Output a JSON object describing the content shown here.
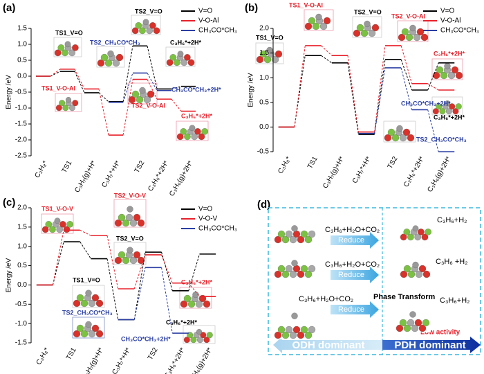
{
  "chart_data": [
    {
      "type": "energy-profile",
      "title": "(a)",
      "y_label": "Energy /eV",
      "categories": [
        "C₃H₈*",
        "TS1",
        "C₃H₇(g)+H*",
        "C₃H₇*+H*",
        "TS2",
        "C₃H₆*+2H*",
        "C₃H₆(g)+2H*"
      ],
      "series": [
        {
          "name": "V=O",
          "color": "#000000",
          "values": [
            0,
            0.15,
            -0.52,
            -0.8,
            0.95,
            -0.4,
            -0.32
          ]
        },
        {
          "name": "V-O-Al",
          "color": "#e8202a",
          "values": [
            0,
            0.22,
            -0.4,
            -1.85,
            -0.1,
            -0.72,
            -1.1
          ]
        },
        {
          "name": "CH₃CO*CH₃",
          "color": "#2b3fa3",
          "values": [
            null,
            null,
            null,
            -0.82,
            0.1,
            -0.45,
            null
          ]
        }
      ],
      "ylim": [
        -2.5,
        1.5
      ],
      "yticks": [
        -2.5,
        {
          "value": -2,
          "label": "-2.0"
        },
        -1.5,
        {
          "value": -1,
          "label": "-1.0"
        },
        -0.5,
        {
          "value": 0,
          "label": "0.0"
        },
        0.5,
        {
          "value": 1,
          "label": "1.0"
        },
        1.5
      ],
      "annotations": [
        {
          "text": "TS1_V=O",
          "color": "#000000"
        },
        {
          "text": "TS2_V=O",
          "color": "#000000"
        },
        {
          "text": "TS2_CH₃CO*CH₃",
          "color": "#2b3fa3"
        },
        {
          "text": "TS1_V-O-Al",
          "color": "#e8202a"
        },
        {
          "text": "TS2_V-O-Al",
          "color": "#e8202a"
        },
        {
          "text": "C₃H₆*+2H*",
          "color": "#000000"
        },
        {
          "text": "C₃H₆*+2H*",
          "color": "#e8202a"
        },
        {
          "text": "CH₃CO*CH₃+2H*",
          "color": "#2b3fa3"
        }
      ]
    },
    {
      "type": "energy-profile",
      "title": "(b)",
      "y_label": "Energy /eV",
      "categories": [
        "C₃H₈*",
        "TS1",
        "C₃H₇(g)+H*",
        "C₃H₇*+H*",
        "TS2",
        "C₃H₆*+2H*",
        "C₃H₆(g)+2H*"
      ],
      "series": [
        {
          "name": "V=O",
          "color": "#000000",
          "values": [
            0,
            1.45,
            1.3,
            -0.15,
            1.37,
            0.75,
            1.3
          ]
        },
        {
          "name": "V-O-Al",
          "color": "#e8202a",
          "values": [
            0,
            1.65,
            1.45,
            -0.1,
            1.65,
            0.88,
            0.75
          ]
        },
        {
          "name": "CH₃CO*CH₃",
          "color": "#2b3fa3",
          "values": [
            null,
            null,
            null,
            -0.13,
            1.2,
            0.35,
            -0.5
          ]
        }
      ],
      "ylim": [
        -0.5,
        2.0
      ],
      "yticks": [
        -0.5,
        {
          "value": 0,
          "label": "0.0"
        },
        0.5,
        {
          "value": 1,
          "label": "1.0"
        },
        1.5,
        {
          "value": 2,
          "label": "2.0"
        }
      ],
      "annotations": [
        {
          "text": "TS1_V-O-Al",
          "color": "#e8202a"
        },
        {
          "text": "TS2_V=O",
          "color": "#000000"
        },
        {
          "text": "TS2_V-O-Al",
          "color": "#e8202a"
        },
        {
          "text": "TS1_V=O",
          "color": "#000000"
        },
        {
          "text": "C₃H₆*+2H*",
          "color": "#e8202a"
        },
        {
          "text": "C₃H₆*+2H*",
          "color": "#000000"
        },
        {
          "text": "TS2_CH₃CO*CH₃",
          "color": "#2b3fa3"
        },
        {
          "text": "CH₃CO*CH₃+2H*",
          "color": "#2b3fa3"
        }
      ]
    },
    {
      "type": "energy-profile",
      "title": "(c)",
      "y_label": "Energy /eV",
      "categories": [
        "C₃H₈*",
        "TS1",
        "C₃H₇(g)+H*",
        "C₃H₇*+H*",
        "TS2",
        "C₃H₆*+2H*",
        "C₃H₆(g)+2H*"
      ],
      "series": [
        {
          "name": "V=O",
          "color": "#000000",
          "values": [
            0,
            1.12,
            0.68,
            -0.9,
            0.85,
            -0.15,
            0.8
          ]
        },
        {
          "name": "V-O-V",
          "color": "#e8202a",
          "values": [
            0,
            1.42,
            1.28,
            -0.1,
            0.78,
            0.05,
            -0.3
          ]
        },
        {
          "name": "CH₃CO*CH₃",
          "color": "#2b3fa3",
          "values": [
            null,
            null,
            null,
            -0.9,
            0.45,
            -1.25,
            null
          ]
        }
      ],
      "ylim": [
        -1.5,
        2.0
      ],
      "yticks": [
        -1.5,
        {
          "value": -1,
          "label": "-1.0"
        },
        -0.5,
        {
          "value": 0,
          "label": "0.0"
        },
        0.5,
        {
          "value": 1,
          "label": "1.0"
        },
        1.5,
        {
          "value": 2,
          "label": "2.0"
        }
      ],
      "annotations": [
        {
          "text": "TS1_V-O-V",
          "color": "#e8202a"
        },
        {
          "text": "TS2_V-O-V",
          "color": "#e8202a"
        },
        {
          "text": "TS2_V=O",
          "color": "#000000"
        },
        {
          "text": "TS1_V=O",
          "color": "#000000"
        },
        {
          "text": "TS2_CH₃CO*CH₃",
          "color": "#2b3fa3"
        },
        {
          "text": "C₃H₆*+2H*",
          "color": "#e8202a"
        },
        {
          "text": "C₃H₆*+2H*",
          "color": "#000000"
        },
        {
          "text": "CH₃CO*CH₃+2H*",
          "color": "#2b3fa3"
        }
      ]
    }
  ],
  "diagram": {
    "title": "(d)",
    "rows": [
      {
        "reactants": "C₃H₆+H₂O+CO₂",
        "action": "Reduce",
        "product": "C₃H₆+H₂"
      },
      {
        "reactants": "C₃H₆+H₂O+CO₂",
        "action": "Reduce",
        "product": "C₃H₆ +H₂"
      },
      {
        "reactants": "C₃H₆+H₂O+CO₂",
        "action": "Reduce",
        "transition": "Phase Transform",
        "product": "C₃H₆+H₂",
        "note": "Low activity"
      }
    ],
    "left_band": "ODH dominant",
    "right_band": "PDH dominant"
  }
}
